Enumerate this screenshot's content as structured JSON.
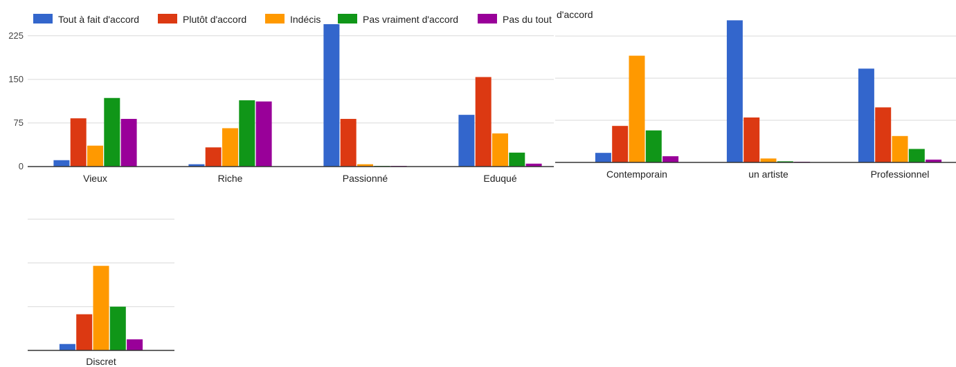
{
  "legend": [
    {
      "name": "Tout à fait d'accord",
      "color": "#3366cc"
    },
    {
      "name": "Plutôt d'accord",
      "color": "#dc3912"
    },
    {
      "name": "Indécis",
      "color": "#ff9900"
    },
    {
      "name": "Pas vraiment d'accord",
      "color": "#109618"
    },
    {
      "name": "Pas du tout d'accord",
      "color": "#990099"
    }
  ],
  "chart_data": [
    {
      "type": "bar",
      "categories": [
        "Vieux",
        "Riche",
        "Passionné",
        "Eduqué"
      ],
      "y_ticks": [
        0,
        75,
        150,
        225
      ],
      "ylim": [
        0,
        250
      ],
      "grid": true,
      "legend_position": "top",
      "series": [
        {
          "name": "Tout à fait d'accord",
          "values": [
            11,
            4,
            245,
            89
          ]
        },
        {
          "name": "Plutôt d'accord",
          "values": [
            83,
            33,
            82,
            154
          ]
        },
        {
          "name": "Indécis",
          "values": [
            36,
            66,
            4,
            57
          ]
        },
        {
          "name": "Pas vraiment d'accord",
          "values": [
            118,
            114,
            1,
            24
          ]
        },
        {
          "name": "Pas du tout d'accord",
          "values": [
            82,
            112,
            1,
            5
          ]
        }
      ]
    },
    {
      "type": "bar",
      "categories": [
        "Contemporain",
        "un artiste",
        "Professionnel"
      ],
      "ylim": [
        0,
        250
      ],
      "grid": true,
      "series": [
        {
          "name": "Tout à fait d'accord",
          "values": [
            17,
            253,
            167
          ]
        },
        {
          "name": "Plutôt d'accord",
          "values": [
            65,
            80,
            98
          ]
        },
        {
          "name": "Indécis",
          "values": [
            190,
            7,
            47
          ]
        },
        {
          "name": "Pas vraiment d'accord",
          "values": [
            57,
            2,
            24
          ]
        },
        {
          "name": "Pas du tout d'accord",
          "values": [
            11,
            1,
            5
          ]
        }
      ]
    },
    {
      "type": "bar",
      "categories": [
        "Discret"
      ],
      "ylim": [
        0,
        250
      ],
      "grid": true,
      "series": [
        {
          "name": "Tout à fait d'accord",
          "values": [
            11
          ]
        },
        {
          "name": "Plutôt d'accord",
          "values": [
            62
          ]
        },
        {
          "name": "Indécis",
          "values": [
            145
          ]
        },
        {
          "name": "Pas vraiment d'accord",
          "values": [
            75
          ]
        },
        {
          "name": "Pas du tout d'accord",
          "values": [
            19
          ]
        }
      ]
    }
  ]
}
